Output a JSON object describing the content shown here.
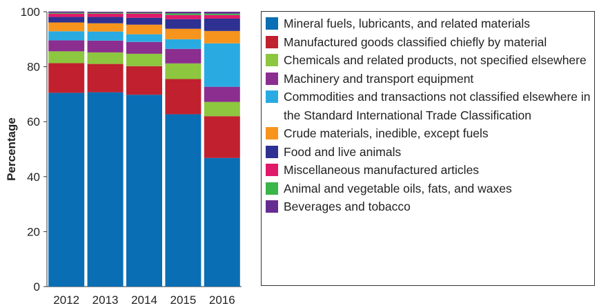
{
  "chart_data": {
    "type": "stacked_bar",
    "y_label": "Percentage",
    "categories": [
      "2012",
      "2013",
      "2014",
      "2015",
      "2016"
    ],
    "ylim": [
      0,
      100
    ],
    "yticks": [
      0,
      20,
      40,
      60,
      80,
      100
    ],
    "series": [
      {
        "name": "Mineral fuels, lubricants, and related materials",
        "color": "#0a6eb4",
        "values": [
          70.5,
          70.7,
          69.8,
          62.7,
          46.8
        ]
      },
      {
        "name": "Manufactured goods classified chiefly by material",
        "color": "#c1212e",
        "values": [
          10.8,
          10.3,
          10.4,
          12.8,
          15.2
        ]
      },
      {
        "name": "Chemicals and related products, not specified elsewhere",
        "color": "#8dc63f",
        "values": [
          4.3,
          4.2,
          4.5,
          5.7,
          5.2
        ]
      },
      {
        "name": "Machinery and transport equipment",
        "color": "#8b2e8f",
        "values": [
          4,
          4.3,
          4.3,
          5.3,
          5.5
        ]
      },
      {
        "name": "Commodities and transactions not classified elsewhere in the Standard International Trade Classification",
        "color": "#29abe2",
        "values": [
          3.3,
          3.3,
          2.8,
          3.5,
          15.8
        ]
      },
      {
        "name": "Crude materials, inedible, except fuels",
        "color": "#f7941d",
        "values": [
          3.2,
          3,
          3.5,
          3.8,
          4.5
        ]
      },
      {
        "name": "Food and live animals",
        "color": "#2e3192",
        "values": [
          2,
          2.3,
          2.5,
          3.5,
          4.5
        ]
      },
      {
        "name": "Miscellaneous manufactured articles",
        "color": "#e0196a",
        "values": [
          1.2,
          1.2,
          1.5,
          1.5,
          1.3
        ]
      },
      {
        "name": "Animal and vegetable oils, fats, and waxes",
        "color": "#39b54a",
        "values": [
          0.3,
          0.3,
          0.3,
          0.6,
          0.5
        ]
      },
      {
        "name": "Beverages and tobacco",
        "color": "#662d91",
        "values": [
          0.5,
          0.4,
          0.4,
          0.6,
          0.7
        ]
      }
    ]
  }
}
